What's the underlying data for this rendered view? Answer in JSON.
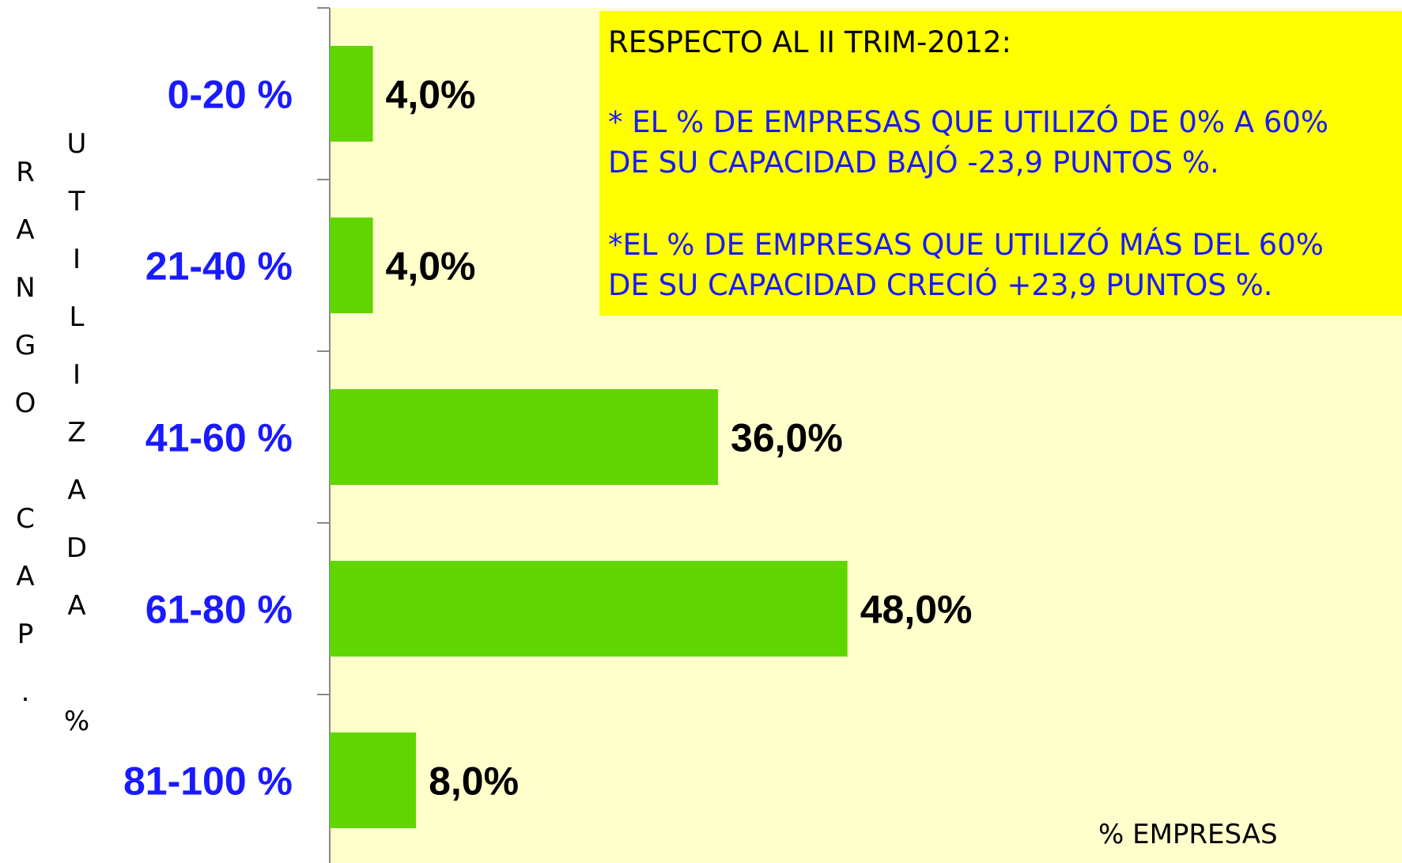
{
  "chart_data": {
    "type": "bar",
    "orientation": "horizontal",
    "y_label_1": "RANGO CAP.",
    "y_label_2": "UTILIZADA %",
    "x_label": "% EMPRESAS",
    "categories": [
      "0-20 %",
      "21-40 %",
      "41-60 %",
      "61-80 %",
      "81-100 %"
    ],
    "values": [
      4,
      4,
      36,
      48,
      8
    ],
    "value_labels": [
      "4,0%",
      "4,0%",
      "36,0%",
      "48,0%",
      "8,0%"
    ],
    "color": "#5fd600",
    "xlim": [
      0,
      100
    ],
    "annotation": [
      "RESPECTO AL II TRIM-2012:",
      "* EL % DE EMPRESAS QUE UTILIZÓ DE 0% A 60%",
      "DE SU CAPACIDAD BAJÓ -23,9 PUNTOS %.",
      "*EL % DE EMPRESAS QUE UTILIZÓ MÁS DEL 60%",
      "DE SU CAPACIDAD CRECIÓ +23,9 PUNTOS %."
    ]
  }
}
